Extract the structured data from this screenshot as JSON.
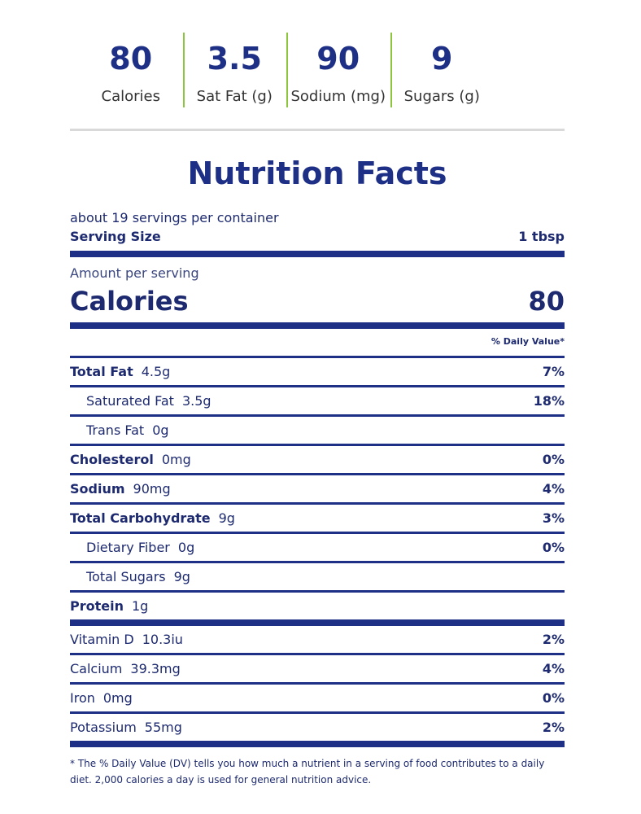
{
  "summary": [
    {
      "value": "80",
      "label": "Calories"
    },
    {
      "value": "3.5",
      "label": "Sat Fat (g)"
    },
    {
      "value": "90",
      "label": "Sodium (mg)"
    },
    {
      "value": "9",
      "label": "Sugars (g)"
    }
  ],
  "colors": {
    "navy": "#1e2f86",
    "divider_green": "#8cc63f",
    "rule_gray": "#d9d9d9"
  },
  "label": {
    "title": "Nutrition Facts",
    "servings_per_container": "about 19 servings per container",
    "serving_size_label": "Serving Size",
    "serving_size_value": "1 tbsp",
    "amount_per_serving": "Amount per serving",
    "calories_label": "Calories",
    "calories_value": "80",
    "daily_value_header": "% Daily Value*",
    "nutrients": [
      {
        "name": "Total Fat",
        "amount": "4.5g",
        "dv": "7%"
      },
      {
        "name": "Saturated Fat",
        "amount": "3.5g",
        "dv": "18%"
      },
      {
        "name": "Trans Fat",
        "amount": "0g",
        "dv": ""
      },
      {
        "name": "Cholesterol",
        "amount": "0mg",
        "dv": "0%"
      },
      {
        "name": "Sodium",
        "amount": "90mg",
        "dv": "4%"
      },
      {
        "name": "Total Carbohydrate",
        "amount": "9g",
        "dv": "3%"
      },
      {
        "name": "Dietary Fiber",
        "amount": "0g",
        "dv": "0%"
      },
      {
        "name": "Total Sugars",
        "amount": "9g",
        "dv": ""
      },
      {
        "name": "Protein",
        "amount": "1g",
        "dv": ""
      }
    ],
    "vitamins": [
      {
        "name": "Vitamin D",
        "amount": "10.3iu",
        "dv": "2%"
      },
      {
        "name": "Calcium",
        "amount": "39.3mg",
        "dv": "4%"
      },
      {
        "name": "Iron",
        "amount": "0mg",
        "dv": "0%"
      },
      {
        "name": "Potassium",
        "amount": "55mg",
        "dv": "2%"
      }
    ],
    "footnote": "* The % Daily Value (DV) tells you how much a nutrient in a serving of food contributes to a daily diet. 2,000 calories a day is used for general nutrition advice."
  }
}
